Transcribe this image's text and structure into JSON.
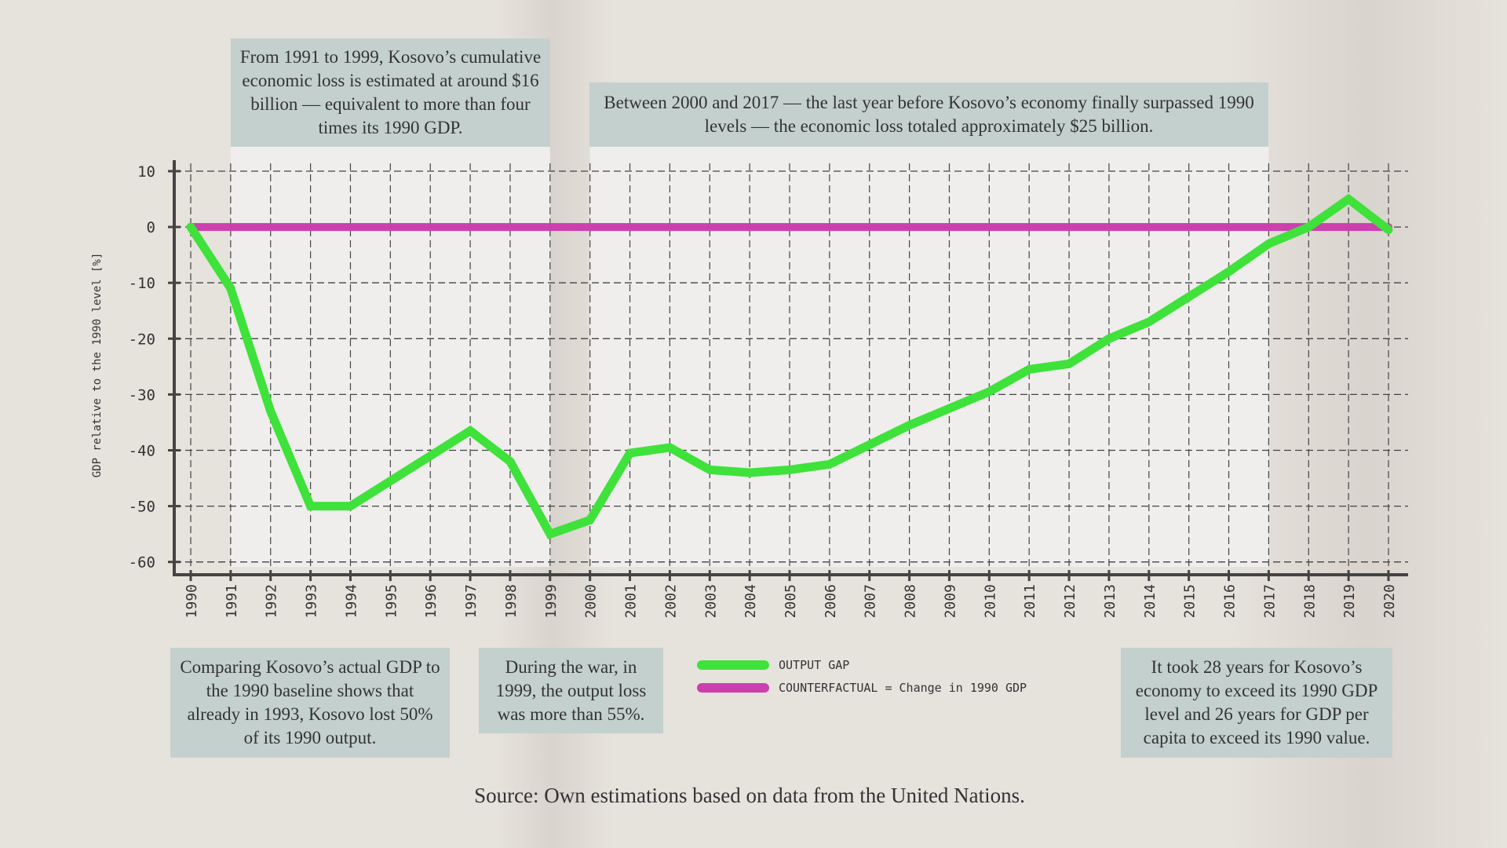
{
  "chart_data": {
    "type": "line",
    "title": "",
    "xlabel": "",
    "ylabel": "GDP relative to the 1990 level [%]",
    "x": [
      1990,
      1991,
      1992,
      1993,
      1994,
      1995,
      1996,
      1997,
      1998,
      1999,
      2000,
      2001,
      2002,
      2003,
      2004,
      2005,
      2006,
      2007,
      2008,
      2009,
      2010,
      2011,
      2012,
      2013,
      2014,
      2015,
      2016,
      2017,
      2018,
      2019,
      2020
    ],
    "ylim": [
      -62,
      12
    ],
    "yticks": [
      10,
      0,
      -10,
      -20,
      -30,
      -40,
      -50,
      -60
    ],
    "grid": true,
    "legend_placement": "bottom-center",
    "series": [
      {
        "name": "OUTPUT GAP",
        "color": "#3ee23a",
        "values": [
          0,
          -11,
          -33,
          -50,
          -50,
          -45.5,
          -41,
          -36.5,
          -42,
          -55,
          -52.5,
          -40.5,
          -39.5,
          -43.5,
          -44,
          -43.5,
          -42.5,
          -39,
          -35.5,
          -32.5,
          -29.5,
          -25.5,
          -24.5,
          -20,
          -17,
          -12.5,
          -8,
          -3,
          0,
          5,
          -0.5
        ]
      },
      {
        "name": "COUNTERFACTUAL = Change in 1990 GDP",
        "color": "#cc3fae",
        "values": [
          0,
          0,
          0,
          0,
          0,
          0,
          0,
          0,
          0,
          0,
          0,
          0,
          0,
          0,
          0,
          0,
          0,
          0,
          0,
          0,
          0,
          0,
          0,
          0,
          0,
          0,
          0,
          0,
          0,
          0,
          0
        ]
      }
    ],
    "highlight_periods": [
      [
        1991,
        1999
      ],
      [
        2000,
        2017
      ]
    ]
  },
  "annotations": {
    "a1": "From 1991 to 1999, Kosovo’s cumulative economic loss is estimated at around $16 billion — equivalent to more than four times its 1990 GDP.",
    "a2": "Between 2000 and 2017 — the last year before Kosovo’s economy finally surpassed 1990 levels — the economic loss totaled approximately $25 billion.",
    "a3": "Comparing Kosovo’s actual GDP to the 1990 baseline shows that already in 1993, Kosovo lost 50% of its 1990 output.",
    "a4": "During the war, in 1999, the output loss was more than 55%.",
    "a5": "It took 28 years for Kosovo’s economy to exceed its 1990 GDP level and 26 years for GDP per capita to exceed its 1990 value."
  },
  "source": "Source: Own estimations based on data from the United Nations."
}
